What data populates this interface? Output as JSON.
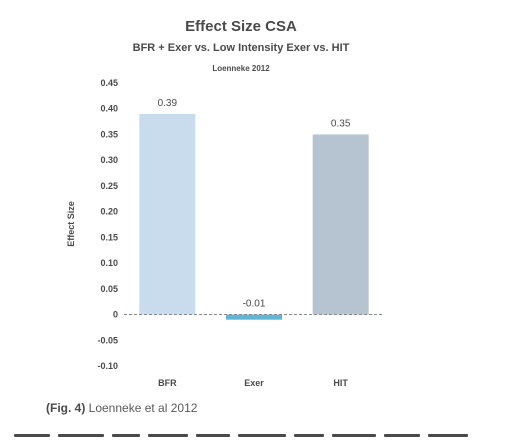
{
  "chart_data": {
    "type": "bar",
    "title": "Effect Size CSA",
    "subtitle": "BFR + Exer vs. Low Intensity Exer vs. HIT",
    "note": "Loenneke 2012",
    "ylabel": "Effect Size",
    "xlabel": "",
    "categories": [
      "BFR",
      "Exer",
      "HIT"
    ],
    "values": [
      0.39,
      -0.01,
      0.35
    ],
    "value_labels": [
      "0.39",
      "-0.01",
      "0.35"
    ],
    "colors": [
      "#c8dcee",
      "#5fb5d6",
      "#b6c3d1"
    ],
    "ylim": [
      -0.1,
      0.45
    ],
    "yticks": [
      0.45,
      0.4,
      0.35,
      0.3,
      0.25,
      0.2,
      0.15,
      0.1,
      0.05,
      0,
      -0.05,
      -0.1
    ],
    "ytick_labels": [
      "0.45",
      "0.40",
      "0.35",
      "0.30",
      "0.25",
      "0.20",
      "0.15",
      "0.10",
      "0.05",
      "0",
      "-0.05",
      "-0.10"
    ],
    "grid": false,
    "zero_line": "dashed"
  },
  "caption": {
    "label": "(Fig. 4)",
    "text": " Loenneke et al 2012"
  }
}
